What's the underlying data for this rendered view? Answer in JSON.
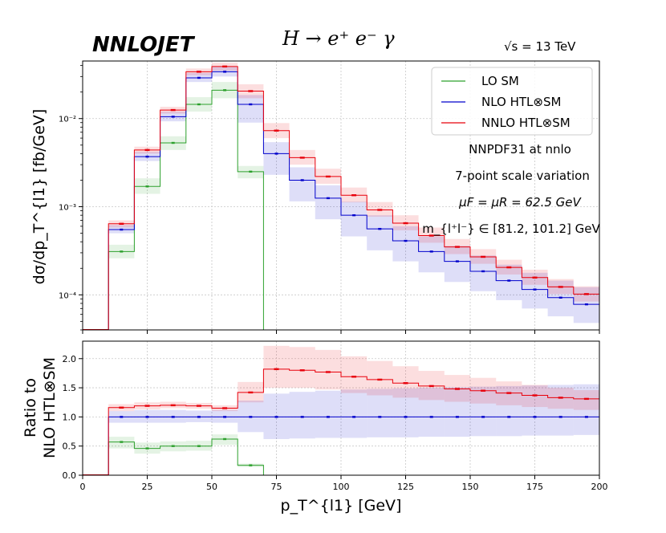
{
  "header": {
    "logo": "NNLOJET",
    "process": "H → e⁺ e⁻ γ",
    "energy": "√s = 13 TeV"
  },
  "chart_data": [
    {
      "type": "line",
      "panel": "main",
      "ylabel": "dσ/dp_T^{l1} [fb/GeV]",
      "yscale": "log",
      "ylim": [
        4e-05,
        0.045
      ],
      "xlim": [
        0,
        200
      ],
      "ytick_labels": [
        "10⁻⁴",
        "10⁻³",
        "10⁻²"
      ],
      "ytick_values": [
        0.0001,
        0.001,
        0.01
      ],
      "grid": true,
      "legend_position": "top-right",
      "annotations": [
        "NNPDF31 at nnlo",
        "7-point scale variation",
        "μF = μR = 62.5 GeV",
        "m_{l⁺l⁻} ∈ [81.2, 101.2] GeV"
      ],
      "bin_edges": [
        0,
        10,
        20,
        30,
        40,
        50,
        60,
        70,
        80,
        90,
        100,
        110,
        120,
        130,
        140,
        150,
        160,
        170,
        180,
        190,
        200
      ],
      "series": [
        {
          "name": "LO SM",
          "color": "#2ca02c",
          "values": [
            null,
            0.00031,
            0.0017,
            0.0053,
            0.0145,
            0.021,
            0.0025,
            null,
            null,
            null,
            null,
            null,
            null,
            null,
            null,
            null,
            null,
            null,
            null,
            null
          ],
          "band_low": [
            null,
            0.00026,
            0.0014,
            0.0044,
            0.012,
            0.017,
            0.0021,
            null,
            null,
            null,
            null,
            null,
            null,
            null,
            null,
            null,
            null,
            null,
            null,
            null
          ],
          "band_high": [
            null,
            0.00037,
            0.0021,
            0.0063,
            0.0175,
            0.026,
            0.0029,
            null,
            null,
            null,
            null,
            null,
            null,
            null,
            null,
            null,
            null,
            null,
            null,
            null
          ]
        },
        {
          "name": "NLO HTL⊗SM",
          "color": "#0000cc",
          "values": [
            null,
            0.00055,
            0.0037,
            0.0105,
            0.029,
            0.034,
            0.0145,
            0.004,
            0.002,
            0.00125,
            0.0008,
            0.00056,
            0.00041,
            0.00031,
            0.00024,
            0.000185,
            0.000145,
            0.000115,
            9.3e-05,
            7.8e-05
          ],
          "band_low": [
            null,
            0.0005,
            0.0033,
            0.0093,
            0.026,
            0.03,
            0.009,
            0.0023,
            0.00115,
            0.00072,
            0.00046,
            0.00032,
            0.00024,
            0.00018,
            0.00014,
            0.00011,
            8.7e-05,
            7e-05,
            5.7e-05,
            4.8e-05
          ],
          "band_high": [
            null,
            0.00062,
            0.0042,
            0.012,
            0.033,
            0.039,
            0.0185,
            0.0054,
            0.0028,
            0.00175,
            0.00114,
            0.0008,
            0.0006,
            0.00046,
            0.00036,
            0.00028,
            0.00022,
            0.000178,
            0.000145,
            0.000122
          ]
        },
        {
          "name": "NNLO HTL⊗SM",
          "color": "#e8000b",
          "values": [
            null,
            0.00064,
            0.0044,
            0.0125,
            0.034,
            0.039,
            0.0205,
            0.0073,
            0.0036,
            0.0022,
            0.00135,
            0.00092,
            0.00065,
            0.00047,
            0.00035,
            0.00027,
            0.000205,
            0.000157,
            0.000123,
            0.000102
          ],
          "band_low": [
            null,
            0.00058,
            0.004,
            0.0114,
            0.031,
            0.035,
            0.017,
            0.006,
            0.003,
            0.00182,
            0.00112,
            0.00077,
            0.00054,
            0.00039,
            0.00029,
            0.000225,
            0.00017,
            0.00013,
            0.000102,
            8.4e-05
          ],
          "band_high": [
            null,
            0.0007,
            0.0048,
            0.0136,
            0.037,
            0.043,
            0.0245,
            0.0089,
            0.0044,
            0.0027,
            0.00165,
            0.00113,
            0.0008,
            0.00058,
            0.00043,
            0.00033,
            0.00025,
            0.000193,
            0.000151,
            0.000125
          ]
        }
      ]
    },
    {
      "type": "line",
      "panel": "ratio",
      "xlabel": "p_T^{l1} [GeV]",
      "ylabel_line1": "Ratio to",
      "ylabel_line2": "NLO HTL⊗SM",
      "xlim": [
        0,
        200
      ],
      "ylim": [
        0,
        2.3
      ],
      "xtick_labels": [
        "0",
        "25",
        "50",
        "75",
        "100",
        "125",
        "150",
        "175",
        "200"
      ],
      "xtick_values": [
        0,
        25,
        50,
        75,
        100,
        125,
        150,
        175,
        200
      ],
      "ytick_labels": [
        "0.0",
        "0.5",
        "1.0",
        "1.5",
        "2.0"
      ],
      "ytick_values": [
        0,
        0.5,
        1.0,
        1.5,
        2.0
      ],
      "grid": true,
      "bin_edges": [
        0,
        10,
        20,
        30,
        40,
        50,
        60,
        70,
        80,
        90,
        100,
        110,
        120,
        130,
        140,
        150,
        160,
        170,
        180,
        190,
        200
      ],
      "series": [
        {
          "name": "LO SM",
          "color": "#2ca02c",
          "values": [
            null,
            0.57,
            0.46,
            0.5,
            0.5,
            0.62,
            0.17,
            null,
            null,
            null,
            null,
            null,
            null,
            null,
            null,
            null,
            null,
            null,
            null,
            null
          ],
          "band_low": [
            null,
            0.46,
            0.37,
            0.41,
            0.42,
            0.52,
            0.14,
            null,
            null,
            null,
            null,
            null,
            null,
            null,
            null,
            null,
            null,
            null,
            null,
            null
          ],
          "band_high": [
            null,
            0.66,
            0.56,
            0.58,
            0.59,
            0.7,
            0.2,
            null,
            null,
            null,
            null,
            null,
            null,
            null,
            null,
            null,
            null,
            null,
            null,
            null
          ]
        },
        {
          "name": "NLO HTL⊗SM",
          "color": "#0000cc",
          "values": [
            null,
            1.0,
            1.0,
            1.0,
            1.0,
            1.0,
            1.0,
            1.0,
            1.0,
            1.0,
            1.0,
            1.0,
            1.0,
            1.0,
            1.0,
            1.0,
            1.0,
            1.0,
            1.0,
            1.0
          ],
          "band_low": [
            null,
            0.9,
            0.9,
            0.9,
            0.91,
            0.9,
            0.74,
            0.62,
            0.63,
            0.64,
            0.64,
            0.65,
            0.65,
            0.66,
            0.66,
            0.67,
            0.67,
            0.68,
            0.68,
            0.69
          ],
          "band_high": [
            null,
            1.1,
            1.12,
            1.12,
            1.11,
            1.12,
            1.28,
            1.4,
            1.43,
            1.45,
            1.47,
            1.48,
            1.49,
            1.5,
            1.51,
            1.52,
            1.53,
            1.54,
            1.55,
            1.56
          ]
        },
        {
          "name": "NNLO HTL⊗SM",
          "color": "#e8000b",
          "values": [
            null,
            1.16,
            1.19,
            1.2,
            1.19,
            1.15,
            1.42,
            1.82,
            1.8,
            1.77,
            1.69,
            1.64,
            1.58,
            1.53,
            1.48,
            1.45,
            1.41,
            1.37,
            1.33,
            1.31
          ],
          "band_low": [
            null,
            1.1,
            1.13,
            1.15,
            1.14,
            1.1,
            1.25,
            1.5,
            1.5,
            1.47,
            1.41,
            1.37,
            1.33,
            1.29,
            1.26,
            1.23,
            1.2,
            1.17,
            1.14,
            1.12
          ],
          "band_high": [
            null,
            1.22,
            1.25,
            1.26,
            1.24,
            1.2,
            1.6,
            2.22,
            2.2,
            2.15,
            2.04,
            1.96,
            1.87,
            1.79,
            1.72,
            1.67,
            1.61,
            1.55,
            1.5,
            1.46
          ]
        }
      ]
    }
  ]
}
